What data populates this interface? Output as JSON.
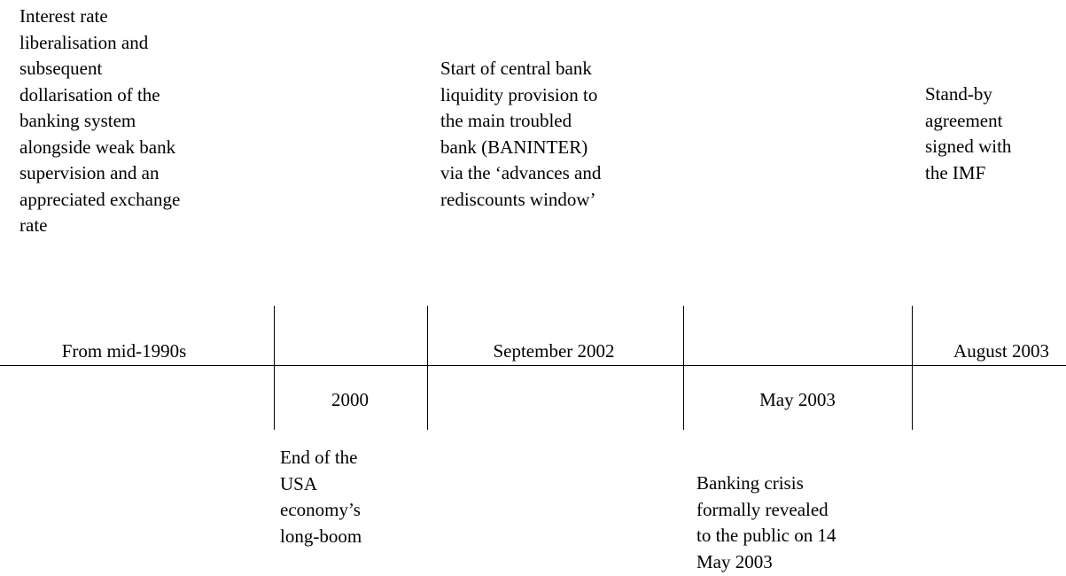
{
  "events": [
    {
      "date": "From mid-1990s",
      "description": [
        "Interest rate",
        "liberalisation and",
        "subsequent",
        "dollarisation of the",
        "banking system",
        "alongside weak bank",
        "supervision and an",
        "appreciated exchange",
        "rate"
      ]
    },
    {
      "date": "2000",
      "description": [
        "End of the",
        "USA",
        "economy’s",
        "long-boom"
      ]
    },
    {
      "date": "September 2002",
      "description": [
        "Start of central bank",
        "liquidity provision to",
        "the main troubled",
        "bank (BANINTER)",
        "via the ‘advances and",
        "rediscounts window’"
      ]
    },
    {
      "date": "May 2003",
      "description": [
        "Banking crisis",
        "formally revealed",
        "to the public on 14",
        "May 2003"
      ]
    },
    {
      "date": "August 2003",
      "description": [
        "Stand-by",
        "agreement",
        "signed with",
        "the IMF"
      ]
    }
  ]
}
